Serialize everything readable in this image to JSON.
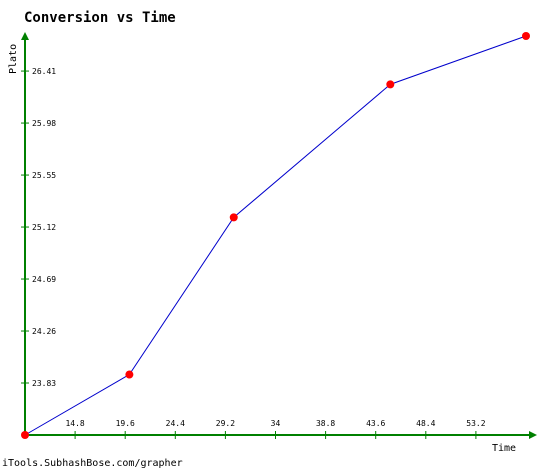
{
  "chart_data": {
    "type": "line",
    "title": "Conversion vs Time",
    "xlabel": "Time",
    "ylabel": "Plato",
    "x": [
      10.0,
      20.0,
      30.0,
      45.0,
      58.0
    ],
    "series": [
      {
        "values": [
          23.4,
          23.9,
          25.2,
          26.3,
          26.7
        ]
      }
    ],
    "xlim": [
      10.0,
      58.0
    ],
    "ylim": [
      23.4,
      26.7
    ],
    "x_ticks": [
      "14.8",
      "19.6",
      "24.4",
      "29.2",
      "34",
      "38.8",
      "43.6",
      "48.4",
      "53.2"
    ],
    "y_ticks": [
      "23.83",
      "24.26",
      "24.69",
      "25.12",
      "25.55",
      "25.98",
      "26.41"
    ],
    "grid": false,
    "legend": false,
    "colors": {
      "axis": "#008000",
      "line": "#0000cc",
      "marker": "#ff0000"
    }
  },
  "footer": "iTools.SubhashBose.com/grapher"
}
